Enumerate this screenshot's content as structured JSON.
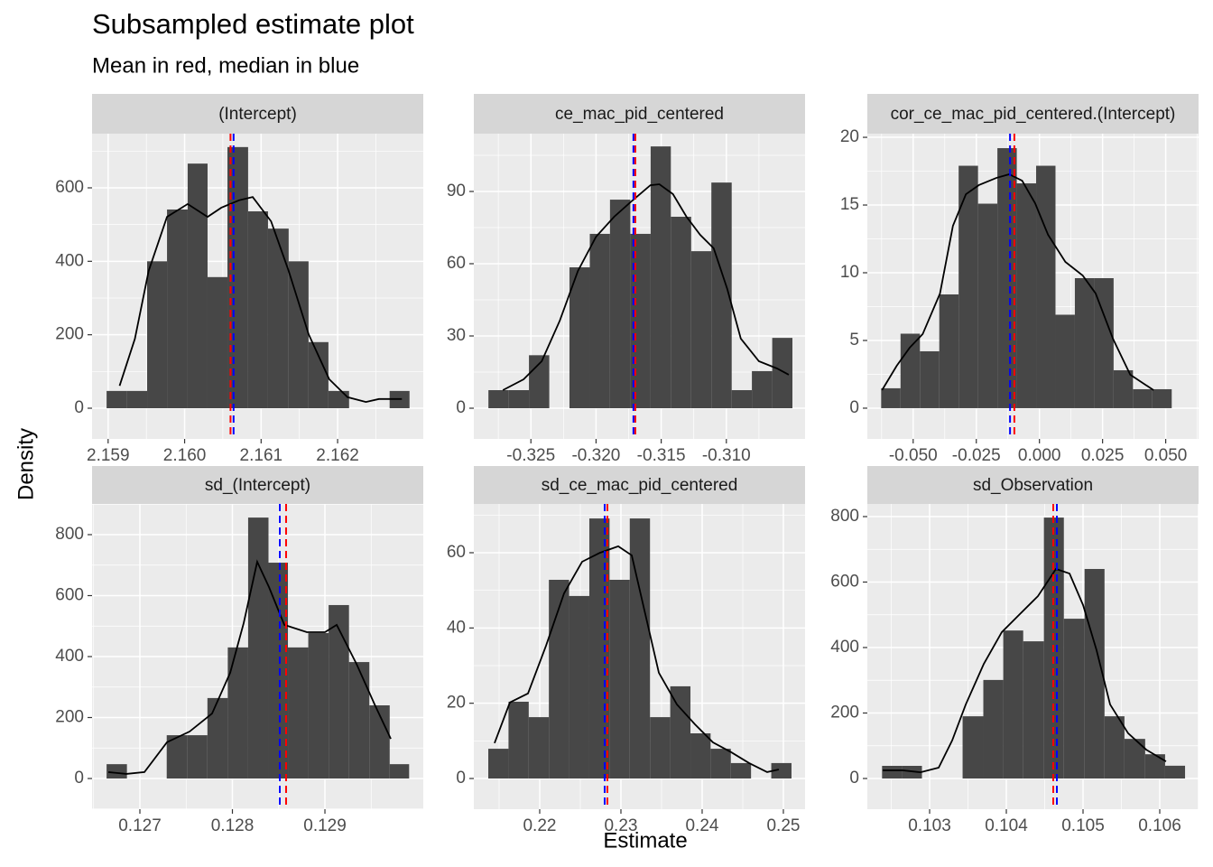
{
  "title": "Subsampled estimate plot",
  "subtitle": "Mean in red, median in blue",
  "xlabel": "Estimate",
  "ylabel": "Density",
  "style": {
    "bar_color": "#474747",
    "density_color": "#000000",
    "mean_color": "#ff0000",
    "median_color": "#0000ff",
    "panel_color": "#ebebeb",
    "strip_color": "#d6d6d6"
  },
  "chart_data": [
    {
      "type": "histogram",
      "title": "(Intercept)",
      "bins": [
        2.15898,
        2.15924,
        2.15951,
        2.15977,
        2.16004,
        2.1603,
        2.16056,
        2.16083,
        2.16109,
        2.16136,
        2.16162,
        2.16188,
        2.16215,
        2.16241,
        2.16268,
        2.16294
      ],
      "values": [
        47,
        47,
        400,
        541,
        666,
        357,
        711,
        536,
        489,
        400,
        180,
        47,
        0,
        0,
        47
      ],
      "density": {
        "x": [
          2.15915,
          2.15935,
          2.15953,
          2.15977,
          2.16004,
          2.1603,
          2.16048,
          2.16071,
          2.16089,
          2.16113,
          2.16136,
          2.16162,
          2.16189,
          2.16213,
          2.16237,
          2.16254,
          2.16284
        ],
        "y": [
          61,
          189,
          374,
          521,
          556,
          521,
          546,
          566,
          575,
          509,
          374,
          202,
          79,
          30,
          17,
          25,
          25
        ]
      },
      "mean": 2.1606,
      "median": 2.16064,
      "xlim": [
        2.15879,
        2.16312
      ],
      "ylim": [
        -83.6,
        747.5
      ],
      "xticks": [
        2.159,
        {
          "value": 2.16,
          "label": "2.160"
        },
        2.161,
        2.162
      ],
      "yticks": [
        0,
        200,
        400,
        600
      ]
    },
    {
      "type": "histogram",
      "title": "ce_mac_pid_centered",
      "bins": [
        -0.32826,
        -0.3267,
        -0.32515,
        -0.32359,
        -0.32204,
        -0.32048,
        -0.31893,
        -0.31737,
        -0.31581,
        -0.31426,
        -0.3127,
        -0.31115,
        -0.30959,
        -0.30804,
        -0.30648,
        -0.30493
      ],
      "values": [
        7.5,
        7.5,
        22,
        0,
        58.5,
        72.4,
        86.6,
        72.4,
        108.7,
        79.5,
        65.2,
        93.7,
        7.5,
        15.4,
        29.2
      ],
      "density": {
        "x": [
          -0.32715,
          -0.32556,
          -0.32417,
          -0.32278,
          -0.32139,
          -0.32,
          -0.31861,
          -0.31722,
          -0.31583,
          -0.31514,
          -0.3141,
          -0.31306,
          -0.31201,
          -0.31097,
          -0.30993,
          -0.30889,
          -0.3075,
          -0.30611,
          -0.30521
        ],
        "y": [
          7.5,
          12,
          19.5,
          36.4,
          57,
          71.2,
          79.5,
          86.2,
          92.6,
          93,
          88.9,
          79.5,
          72,
          66.4,
          49.5,
          28.9,
          19.5,
          16.5,
          13.9
        ]
      },
      "mean": -0.31699,
      "median": -0.31713,
      "xlim": [
        -0.32938,
        -0.30396
      ],
      "ylim": [
        -12.75,
        114
      ],
      "xticks": [
        -0.325,
        {
          "value": -0.32,
          "label": "-0.320"
        },
        -0.315,
        {
          "value": -0.31,
          "label": "-0.310"
        }
      ],
      "yticks": [
        0,
        30,
        60,
        90
      ]
    },
    {
      "type": "histogram",
      "title": "cor_ce_mac_pid_centered.(Intercept)",
      "bins": [
        -0.06267,
        -0.055,
        -0.04733,
        -0.03966,
        -0.03199,
        -0.02432,
        -0.01665,
        -0.00898,
        -0.00131,
        0.00636,
        0.01403,
        0.0217,
        0.02937,
        0.03704,
        0.04471,
        0.05238
      ],
      "values": [
        1.47,
        5.5,
        4.2,
        8.4,
        17.9,
        15.1,
        19.2,
        16.6,
        17.9,
        6.9,
        9.6,
        9.6,
        2.8,
        1.4,
        1.4
      ],
      "density": {
        "x": [
          -0.06233,
          -0.05651,
          -0.05137,
          -0.04623,
          -0.03938,
          -0.03425,
          -0.02911,
          -0.02397,
          -0.01712,
          -0.01199,
          -0.00685,
          -0.00171,
          0.00342,
          0.01027,
          0.01712,
          0.02226,
          0.02911,
          0.03596,
          0.04521
        ],
        "y": [
          1.33,
          3.13,
          4.47,
          5.47,
          8.47,
          13.47,
          15.8,
          16.47,
          17,
          17.27,
          16.8,
          15.13,
          12.8,
          10.8,
          9.8,
          8.47,
          5.13,
          2.47,
          1.33
        ]
      },
      "mean": -0.00993,
      "median": -0.01164,
      "xlim": [
        -0.06815,
        0.06301
      ],
      "ylim": [
        -2.27,
        20.27
      ],
      "xticks": [
        {
          "value": -0.05,
          "label": "-0.050"
        },
        -0.025,
        {
          "value": 0,
          "label": "0.000"
        },
        0.025,
        {
          "value": 0.05,
          "label": "0.050"
        }
      ],
      "yticks": [
        0,
        5,
        10,
        15,
        20
      ]
    },
    {
      "type": "histogram",
      "title": "sd_(Intercept)",
      "bins": [
        0.12664,
        0.12686,
        0.12708,
        0.12729,
        0.12751,
        0.12773,
        0.12795,
        0.12817,
        0.12839,
        0.1286,
        0.12882,
        0.12904,
        0.12926,
        0.12948,
        0.1297,
        0.12991
      ],
      "values": [
        47,
        0,
        0,
        142,
        142,
        264,
        430,
        856,
        708,
        430,
        477,
        569,
        382,
        240,
        47
      ],
      "density": {
        "x": [
          0.126659,
          0.126854,
          0.127049,
          0.127293,
          0.127537,
          0.12778,
          0.127976,
          0.128122,
          0.128268,
          0.128395,
          0.128561,
          0.128805,
          0.129,
          0.129127,
          0.129341,
          0.129537,
          0.129712
        ],
        "y": [
          21,
          15,
          21,
          119,
          154,
          213,
          347,
          510,
          711,
          628,
          504,
          480,
          480,
          504,
          376,
          243,
          130
        ]
      },
      "mean": 0.12858,
      "median": 0.128512,
      "xlim": [
        0.126483,
        0.130063
      ],
      "ylim": [
        -100.7,
        900.7
      ],
      "xticks": [
        0.127,
        0.128,
        0.129
      ],
      "yticks": [
        0,
        200,
        400,
        600,
        800
      ]
    },
    {
      "type": "histogram",
      "title": "sd_ce_mac_pid_centered",
      "bins": [
        0.21367,
        0.21616,
        0.21865,
        0.22113,
        0.22362,
        0.22611,
        0.2286,
        0.23109,
        0.23358,
        0.23607,
        0.23856,
        0.24104,
        0.24353,
        0.24602,
        0.24851,
        0.251
      ],
      "values": [
        7.9,
        20.4,
        16.3,
        52.8,
        48.5,
        69.1,
        52.8,
        69.1,
        16.3,
        24.5,
        12,
        7.9,
        4.1,
        0,
        4.1
      ],
      "density": {
        "x": [
          0.21444,
          0.21633,
          0.21856,
          0.22078,
          0.223,
          0.22522,
          0.22744,
          0.22967,
          0.23133,
          0.233,
          0.23467,
          0.23689,
          0.23911,
          0.24133,
          0.24356,
          0.24578,
          0.248,
          0.24944
        ],
        "y": [
          9.4,
          20.2,
          22.6,
          35.3,
          49.2,
          57.6,
          60,
          61.7,
          59.3,
          43.7,
          28.1,
          19.7,
          14.4,
          9.6,
          7,
          4.1,
          1.7,
          2.4
        ]
      },
      "mean": 0.22833,
      "median": 0.228,
      "xlim": [
        0.21189,
        0.25267
      ],
      "ylim": [
        -8.16,
        72.96
      ],
      "xticks": [
        0.22,
        0.23,
        0.24,
        0.25
      ],
      "yticks": [
        0,
        20,
        40,
        60
      ]
    },
    {
      "type": "histogram",
      "title": "sd_Observation",
      "bins": [
        0.10238,
        0.10264,
        0.1029,
        0.10317,
        0.10343,
        0.1037,
        0.10396,
        0.10422,
        0.10449,
        0.10475,
        0.10502,
        0.10528,
        0.10554,
        0.10581,
        0.10607,
        0.10633
      ],
      "values": [
        38.6,
        38.6,
        0,
        0,
        190,
        301,
        452,
        419,
        797,
        488,
        640,
        190,
        121,
        74,
        39
      ],
      "density": {
        "x": [
          0.102388,
          0.102647,
          0.102882,
          0.103118,
          0.103294,
          0.103471,
          0.103706,
          0.103941,
          0.104176,
          0.104412,
          0.104647,
          0.104824,
          0.105,
          0.105176,
          0.105353,
          0.105588,
          0.105824,
          0.106082
        ],
        "y": [
          25,
          25,
          19,
          33,
          116,
          226,
          350,
          447,
          502,
          557,
          640,
          626,
          530,
          392,
          226,
          138,
          88,
          52
        ]
      },
      "mean": 0.104612,
      "median": 0.104659,
      "xlim": [
        0.102188,
        0.106506
      ],
      "ylim": [
        -93.8,
        838.6
      ],
      "xticks": [
        0.103,
        0.104,
        0.105,
        0.106
      ],
      "yticks": [
        0,
        200,
        400,
        600,
        800
      ]
    }
  ]
}
